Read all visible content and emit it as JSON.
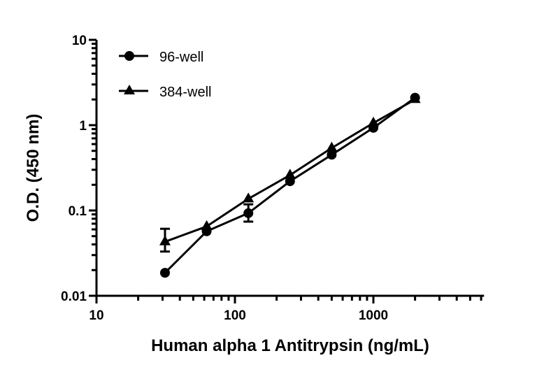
{
  "chart_data": {
    "type": "line",
    "title": "",
    "xlabel": "Human alpha 1 Antitrypsin (ng/mL)",
    "ylabel": "O.D. (450 nm)",
    "x_scale": "log",
    "y_scale": "log",
    "xlim": [
      10,
      6300
    ],
    "ylim": [
      0.01,
      10
    ],
    "x_ticks": [
      10,
      100,
      1000
    ],
    "x_tick_labels": [
      "10",
      "100",
      "1000"
    ],
    "y_ticks": [
      0.01,
      0.1,
      1,
      10
    ],
    "y_tick_labels": [
      "0.01",
      "0.1",
      "1",
      "10"
    ],
    "grid": false,
    "legend_position": "top-left",
    "x": [
      31.25,
      62.5,
      125,
      250,
      500,
      1000,
      2000
    ],
    "series": [
      {
        "name": "96-well",
        "marker": "circle",
        "color": "#000000",
        "values": [
          0.0186,
          0.057,
          0.093,
          0.22,
          0.45,
          0.93,
          2.1
        ],
        "error_low": [
          0.017,
          0.053,
          0.074,
          0.21,
          0.43,
          0.9,
          2.0
        ],
        "error_high": [
          0.0205,
          0.061,
          0.118,
          0.23,
          0.47,
          0.96,
          2.2
        ]
      },
      {
        "name": "384-well",
        "marker": "triangle",
        "color": "#000000",
        "values": [
          0.043,
          0.065,
          0.137,
          0.26,
          0.54,
          1.06,
          2.0
        ],
        "error_low": [
          0.033,
          0.062,
          0.13,
          0.25,
          0.52,
          1.03,
          1.95
        ],
        "error_high": [
          0.061,
          0.068,
          0.144,
          0.27,
          0.56,
          1.09,
          2.05
        ]
      }
    ]
  }
}
